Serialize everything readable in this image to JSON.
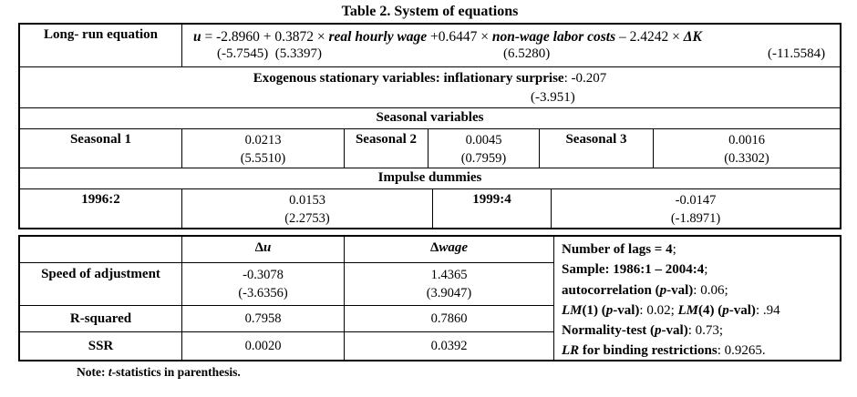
{
  "title": "Table 2. System of equations",
  "table1": {
    "long_run_label": "Long- run equation",
    "equation_parts": [
      {
        "text": "u",
        "style": "bi"
      },
      {
        "text": " = -2.8960 + 0.3872 × ",
        "style": "r"
      },
      {
        "text": "real hourly wage",
        "style": "bi"
      },
      {
        "text": " +0.6447 × ",
        "style": "r"
      },
      {
        "text": "non-wage labor costs",
        "style": "bi"
      },
      {
        "text": " – 2.4242 × ",
        "style": "r"
      },
      {
        "text": "ΔK",
        "style": "bi"
      }
    ],
    "equation_tstats": [
      "(-5.7545)  (5.3397)",
      "(6.5280)",
      "(-11.5584)"
    ],
    "exogenous_line_parts": [
      {
        "text": "Exogenous stationary variables: inflationary surprise",
        "style": "b"
      },
      {
        "text": ": -0.207",
        "style": "r"
      }
    ],
    "exogenous_tstat": "(-3.951)",
    "seasonal_header": "Seasonal variables",
    "seasonals": [
      {
        "label": "Seasonal 1",
        "value": "0.0213",
        "tstat": "(5.5510)"
      },
      {
        "label": "Seasonal 2",
        "value": "0.0045",
        "tstat": "(0.7959)"
      },
      {
        "label": "Seasonal 3",
        "value": "0.0016",
        "tstat": "(0.3302)"
      }
    ],
    "impulse_header": "Impulse dummies",
    "impulses": [
      {
        "label": "1996:2",
        "value": "0.0153",
        "tstat": "(2.2753)"
      },
      {
        "label": "1999:4",
        "value": "-0.0147",
        "tstat": "(-1.8971)"
      }
    ]
  },
  "table2": {
    "col_header_du": [
      {
        "text": "Δ",
        "style": "b"
      },
      {
        "text": "u",
        "style": "bi"
      }
    ],
    "col_header_dwage": [
      {
        "text": "Δ",
        "style": "b"
      },
      {
        "text": "wage",
        "style": "bi"
      }
    ],
    "speed": {
      "label": "Speed of adjustment",
      "du_value": "-0.3078",
      "du_tstat": "(-3.6356)",
      "dwage_value": "1.4365",
      "dwage_tstat": "(3.9047)"
    },
    "r_squared": {
      "label": "R-squared",
      "du_value": "0.7958",
      "dwage_value": "0.7860"
    },
    "ssr": {
      "label": "SSR",
      "du_value": "0.0020",
      "dwage_value": "0.0392"
    }
  },
  "diagnostics": {
    "line1": [
      {
        "text": "Number of lags = 4",
        "style": "b"
      },
      {
        "text": ";",
        "style": "r"
      }
    ],
    "line2": [
      {
        "text": "Sample: 1986:1 – 2004:4",
        "style": "b"
      },
      {
        "text": ";",
        "style": "r"
      }
    ],
    "line3": [
      {
        "text": "autocorrelation (",
        "style": "b"
      },
      {
        "text": "p",
        "style": "bi"
      },
      {
        "text": "-val)",
        "style": "b"
      },
      {
        "text": ": 0.06;",
        "style": "r"
      }
    ],
    "line4": [
      {
        "text": "LM",
        "style": "bi"
      },
      {
        "text": "(1) (",
        "style": "b"
      },
      {
        "text": "p",
        "style": "bi"
      },
      {
        "text": "-val)",
        "style": "b"
      },
      {
        "text": ": 0.02; ",
        "style": "r"
      },
      {
        "text": "LM",
        "style": "bi"
      },
      {
        "text": "(4) (",
        "style": "b"
      },
      {
        "text": "p",
        "style": "bi"
      },
      {
        "text": "-val)",
        "style": "b"
      },
      {
        "text": ": .94",
        "style": "r"
      }
    ],
    "line5": [
      {
        "text": "Normality-test (",
        "style": "b"
      },
      {
        "text": "p",
        "style": "bi"
      },
      {
        "text": "-val)",
        "style": "b"
      },
      {
        "text": ": 0.73;",
        "style": "r"
      }
    ],
    "line6": [
      {
        "text": "LR",
        "style": "bi"
      },
      {
        "text": " for binding restrictions",
        "style": "b"
      },
      {
        "text": ": 0.9265.",
        "style": "r"
      }
    ]
  },
  "note_parts": [
    {
      "text": "Note: ",
      "style": "b"
    },
    {
      "text": "t",
      "style": "bi"
    },
    {
      "text": "-statistics in parenthesis.",
      "style": "b"
    }
  ]
}
